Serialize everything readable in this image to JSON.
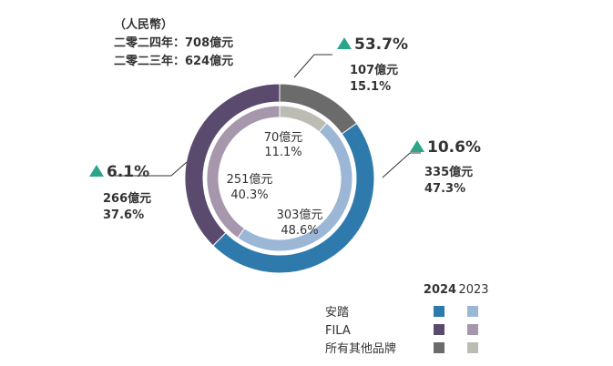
{
  "chart_data": {
    "type": "pie",
    "header": {
      "unit": "（人民幣）",
      "total_2024": "二零二四年：708億元",
      "total_2023": "二零二三年：624億元"
    },
    "legend": {
      "year_2024": "2024",
      "year_2023": "2023",
      "entries": [
        {
          "label": "安踏",
          "color_2024": "#2f7aad",
          "color_2023": "#9cb6d6"
        },
        {
          "label": "FILA",
          "color_2024": "#594a6e",
          "color_2023": "#a697ad"
        },
        {
          "label": "所有其他品牌",
          "color_2024": "#6b6b6b",
          "color_2023": "#bcbcb3"
        }
      ]
    },
    "series": [
      {
        "name": "2024",
        "ring": "outer",
        "slices": [
          {
            "brand": "所有其他品牌",
            "value": 107,
            "value_label": "107億元",
            "share": 15.1,
            "share_label": "15.1%",
            "growth_label": "53.7%",
            "color": "#6b6b6b"
          },
          {
            "brand": "安踏",
            "value": 335,
            "value_label": "335億元",
            "share": 47.3,
            "share_label": "47.3%",
            "growth_label": "10.6%",
            "color": "#2f7aad"
          },
          {
            "brand": "FILA",
            "value": 266,
            "value_label": "266億元",
            "share": 37.6,
            "share_label": "37.6%",
            "growth_label": "6.1%",
            "color": "#594a6e"
          }
        ]
      },
      {
        "name": "2023",
        "ring": "inner",
        "slices": [
          {
            "brand": "所有其他品牌",
            "value": 70,
            "value_label": "70億元",
            "share": 11.1,
            "share_label": "11.1%",
            "color": "#bcbcb3"
          },
          {
            "brand": "安踏",
            "value": 303,
            "value_label": "303億元",
            "share": 48.6,
            "share_label": "48.6%",
            "color": "#9cb6d6"
          },
          {
            "brand": "FILA",
            "value": 251,
            "value_label": "251億元",
            "share": 40.3,
            "share_label": "40.3%",
            "color": "#a697ad"
          }
        ]
      }
    ],
    "growth_marker_color": "#2aa58a"
  }
}
